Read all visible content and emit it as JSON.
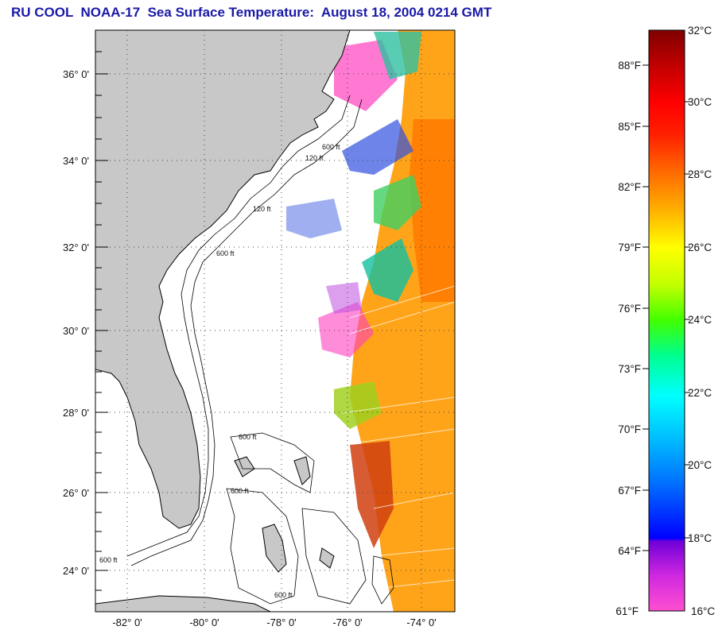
{
  "title": "RU COOL  NOAA-17  Sea Surface Temperature:  August 18, 2004 0214 GMT",
  "map": {
    "lat_labels": [
      "36° 0'",
      "34° 0'",
      "32° 0'",
      "30° 0'",
      "28° 0'",
      "26° 0'",
      "24° 0'"
    ],
    "lon_labels": [
      "-82° 0'",
      "-80° 0'",
      "-78° 0'",
      "-76° 0'",
      "-74° 0'"
    ],
    "contour_labels": [
      "120 ft",
      "600 ft",
      "120 ft",
      "600 ft",
      "600 ft",
      "600 ft",
      "600 ft",
      "600 ft"
    ],
    "colors": {
      "land": "#c8c8c8",
      "frame": "#000000",
      "grid": "#444444"
    }
  },
  "colorbar": {
    "fahrenheit": [
      "88°F",
      "85°F",
      "82°F",
      "79°F",
      "76°F",
      "73°F",
      "70°F",
      "67°F",
      "64°F",
      "61°F"
    ],
    "celsius": [
      "32°C",
      "30°C",
      "28°C",
      "26°C",
      "24°C",
      "22°C",
      "20°C",
      "18°C",
      "16°C"
    ],
    "colors": [
      "#ff4fd0",
      "#d028e0",
      "#7000d8",
      "#0000ff",
      "#0070ff",
      "#00c0ff",
      "#00ffff",
      "#00ff90",
      "#40ff00",
      "#c0ff00",
      "#ffff00",
      "#ffb000",
      "#ff7000",
      "#ff2000",
      "#ff0000",
      "#c00000",
      "#800000"
    ]
  }
}
